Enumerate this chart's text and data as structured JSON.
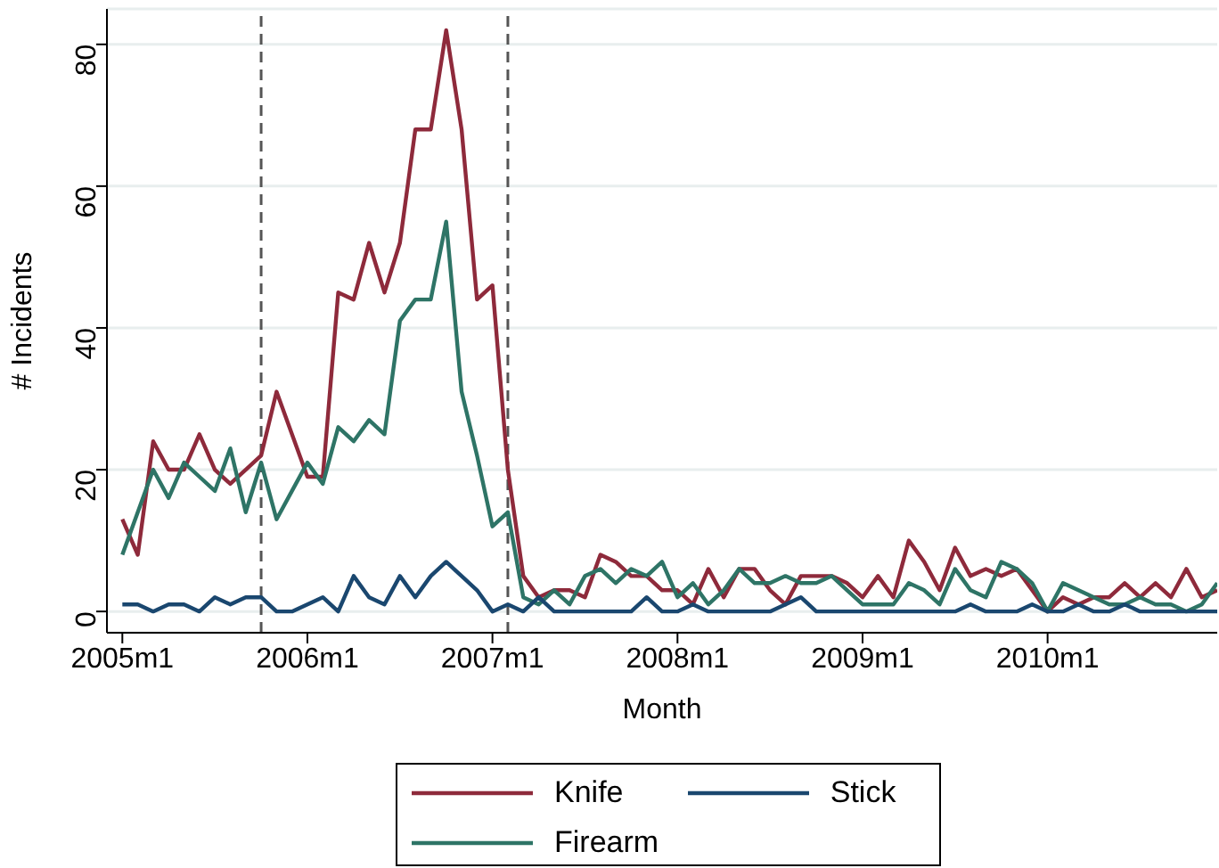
{
  "chart_data": {
    "type": "line",
    "xlabel": "Month",
    "ylabel": "# Incidents",
    "x": [
      "2005-01",
      "2005-02",
      "2005-03",
      "2005-04",
      "2005-05",
      "2005-06",
      "2005-07",
      "2005-08",
      "2005-09",
      "2005-10",
      "2005-11",
      "2005-12",
      "2006-01",
      "2006-02",
      "2006-03",
      "2006-04",
      "2006-05",
      "2006-06",
      "2006-07",
      "2006-08",
      "2006-09",
      "2006-10",
      "2006-11",
      "2006-12",
      "2007-01",
      "2007-02",
      "2007-03",
      "2007-04",
      "2007-05",
      "2007-06",
      "2007-07",
      "2007-08",
      "2007-09",
      "2007-10",
      "2007-11",
      "2007-12",
      "2008-01",
      "2008-02",
      "2008-03",
      "2008-04",
      "2008-05",
      "2008-06",
      "2008-07",
      "2008-08",
      "2008-09",
      "2008-10",
      "2008-11",
      "2008-12",
      "2009-01",
      "2009-02",
      "2009-03",
      "2009-04",
      "2009-05",
      "2009-06",
      "2009-07",
      "2009-08",
      "2009-09",
      "2009-10",
      "2009-11",
      "2009-12",
      "2010-01",
      "2010-02",
      "2010-03",
      "2010-04",
      "2010-05",
      "2010-06",
      "2010-07",
      "2010-08",
      "2010-09",
      "2010-10",
      "2010-11",
      "2010-12"
    ],
    "series": [
      {
        "name": "Knife",
        "color": "#8e2a3b",
        "values": [
          13,
          8,
          24,
          20,
          20,
          25,
          20,
          18,
          20,
          22,
          31,
          25,
          19,
          19,
          45,
          44,
          52,
          45,
          52,
          68,
          68,
          82,
          68,
          44,
          46,
          20,
          5,
          2,
          3,
          3,
          2,
          8,
          7,
          5,
          5,
          3,
          3,
          1,
          6,
          2,
          6,
          6,
          3,
          1,
          5,
          5,
          5,
          4,
          2,
          5,
          2,
          10,
          7,
          3,
          9,
          5,
          6,
          5,
          6,
          3,
          0,
          2,
          1,
          2,
          2,
          4,
          2,
          4,
          2,
          6,
          2,
          3
        ]
      },
      {
        "name": "Firearm",
        "color": "#2e7466",
        "values": [
          8,
          14,
          20,
          16,
          21,
          19,
          17,
          23,
          14,
          21,
          13,
          17,
          21,
          18,
          26,
          24,
          27,
          25,
          41,
          44,
          44,
          55,
          31,
          22,
          12,
          14,
          2,
          1,
          3,
          1,
          5,
          6,
          4,
          6,
          5,
          7,
          2,
          4,
          1,
          3,
          6,
          4,
          4,
          5,
          4,
          4,
          5,
          3,
          1,
          1,
          1,
          4,
          3,
          1,
          6,
          3,
          2,
          7,
          6,
          4,
          0,
          4,
          3,
          2,
          1,
          1,
          2,
          1,
          1,
          0,
          1,
          4
        ]
      },
      {
        "name": "Stick",
        "color": "#1a476f",
        "values": [
          1,
          1,
          0,
          1,
          1,
          0,
          2,
          1,
          2,
          2,
          0,
          0,
          1,
          2,
          0,
          5,
          2,
          1,
          5,
          2,
          5,
          7,
          5,
          3,
          0,
          1,
          0,
          2,
          0,
          0,
          0,
          0,
          0,
          0,
          2,
          0,
          0,
          1,
          0,
          0,
          0,
          0,
          0,
          1,
          2,
          0,
          0,
          0,
          0,
          0,
          0,
          0,
          0,
          0,
          0,
          1,
          0,
          0,
          0,
          1,
          0,
          0,
          1,
          0,
          0,
          1,
          0,
          0,
          0,
          0,
          0,
          0
        ]
      }
    ],
    "xlim": [
      "2004-12",
      "2010-12"
    ],
    "xticks": [
      {
        "value": "2005-01",
        "label": "2005m1"
      },
      {
        "value": "2006-01",
        "label": "2006m1"
      },
      {
        "value": "2007-01",
        "label": "2007m1"
      },
      {
        "value": "2008-01",
        "label": "2008m1"
      },
      {
        "value": "2009-01",
        "label": "2009m1"
      },
      {
        "value": "2010-01",
        "label": "2010m1"
      }
    ],
    "ylim": [
      -3,
      85
    ],
    "yticks": [
      0,
      20,
      40,
      60,
      80
    ],
    "ref_lines": [
      {
        "axis": "x",
        "value": "2005-10",
        "color": "#555555",
        "line_style": "dashed"
      },
      {
        "axis": "x",
        "value": "2007-02",
        "color": "#555555",
        "line_style": "dashed"
      }
    ],
    "grid": "y",
    "legend": "bottom",
    "marker": "none",
    "line_style": "solid"
  }
}
